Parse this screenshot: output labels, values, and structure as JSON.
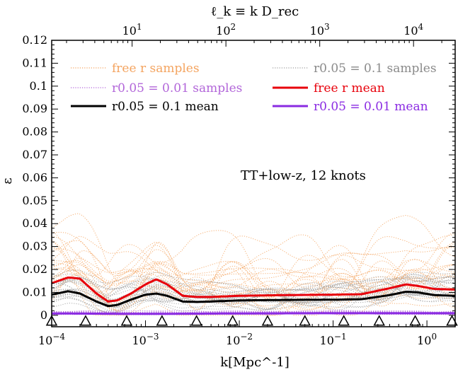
{
  "chart_data": {
    "type": "line",
    "title": "",
    "xlabel": "k[Mpc^-1]",
    "ylabel": "ε",
    "top_xlabel": "ℓ_k ≡ k D_rec",
    "x_scale": "log",
    "xlim": [
      0.0001,
      2
    ],
    "ylim": [
      -0.005,
      0.12
    ],
    "yticks": [
      "0",
      "0.01",
      "0.02",
      "0.03",
      "0.04",
      "0.05",
      "0.06",
      "0.07",
      "0.08",
      "0.09",
      "0.1",
      "0.11",
      "0.12"
    ],
    "xticks": [
      {
        "base": "10",
        "exp": "−4",
        "value": 0.0001
      },
      {
        "base": "10",
        "exp": "−3",
        "value": 0.001
      },
      {
        "base": "10",
        "exp": "−2",
        "value": 0.01
      },
      {
        "base": "10",
        "exp": "−1",
        "value": 0.1
      },
      {
        "base": "10",
        "exp": "0",
        "value": 1
      }
    ],
    "top_xticks": [
      {
        "base": "10",
        "exp": "1",
        "value": 10
      },
      {
        "base": "10",
        "exp": "2",
        "value": 100
      },
      {
        "base": "10",
        "exp": "3",
        "value": 1000
      },
      {
        "base": "10",
        "exp": "4",
        "value": 10000
      }
    ],
    "top_axis_k_per_ell": 7.2e-05,
    "annotation": "TT+low-z, 12 knots",
    "legend": [
      {
        "label": "free r samples",
        "color": "#f4a460",
        "style": "dotted"
      },
      {
        "label": "r0.05 = 0.1 samples",
        "color": "#9e9e9e",
        "style": "dotted"
      },
      {
        "label": "r0.05 = 0.01 samples",
        "color": "#b266d9",
        "style": "dotted"
      },
      {
        "label": "free r mean",
        "color": "#e8000b",
        "style": "solid"
      },
      {
        "label": "r0.05 = 0.1 mean",
        "color": "#000000",
        "style": "solid"
      },
      {
        "label": "r0.05 = 0.01 mean",
        "color": "#8a2be2",
        "style": "solid"
      }
    ],
    "knots": [
      0.0001,
      0.00023,
      0.00063,
      0.0015,
      0.0035,
      0.0085,
      0.02,
      0.05,
      0.13,
      0.31,
      0.75,
      1.85
    ],
    "series": [
      {
        "name": "free r mean",
        "color": "#e8000b",
        "x": [
          0.0001,
          0.00015,
          0.0002,
          0.0003,
          0.0004,
          0.0005,
          0.0007,
          0.001,
          0.0013,
          0.0017,
          0.0025,
          0.0035,
          0.005,
          0.01,
          0.03,
          0.1,
          0.2,
          0.4,
          0.6,
          0.8,
          1.2,
          2
        ],
        "y": [
          0.014,
          0.0165,
          0.016,
          0.0095,
          0.006,
          0.0065,
          0.0095,
          0.0135,
          0.0157,
          0.0135,
          0.0085,
          0.008,
          0.008,
          0.0085,
          0.0088,
          0.009,
          0.0092,
          0.0118,
          0.0135,
          0.0128,
          0.0115,
          0.0112
        ]
      },
      {
        "name": "r0.05 = 0.1 mean",
        "color": "#000000",
        "x": [
          0.0001,
          0.00015,
          0.0002,
          0.0003,
          0.0004,
          0.0005,
          0.0007,
          0.001,
          0.0013,
          0.0017,
          0.0025,
          0.0035,
          0.005,
          0.01,
          0.03,
          0.1,
          0.2,
          0.4,
          0.6,
          0.8,
          1.2,
          2
        ],
        "y": [
          0.009,
          0.0105,
          0.0095,
          0.006,
          0.004,
          0.0045,
          0.0068,
          0.009,
          0.0095,
          0.0085,
          0.006,
          0.0058,
          0.006,
          0.0065,
          0.0067,
          0.0068,
          0.007,
          0.0088,
          0.0103,
          0.01,
          0.0088,
          0.0085
        ]
      },
      {
        "name": "r0.05 = 0.01 mean",
        "color": "#8a2be2",
        "x": [
          0.0001,
          0.001,
          0.01,
          0.1,
          1,
          2
        ],
        "y": [
          0.0008,
          0.0006,
          0.0008,
          0.0009,
          0.0009,
          0.0009
        ]
      }
    ]
  }
}
